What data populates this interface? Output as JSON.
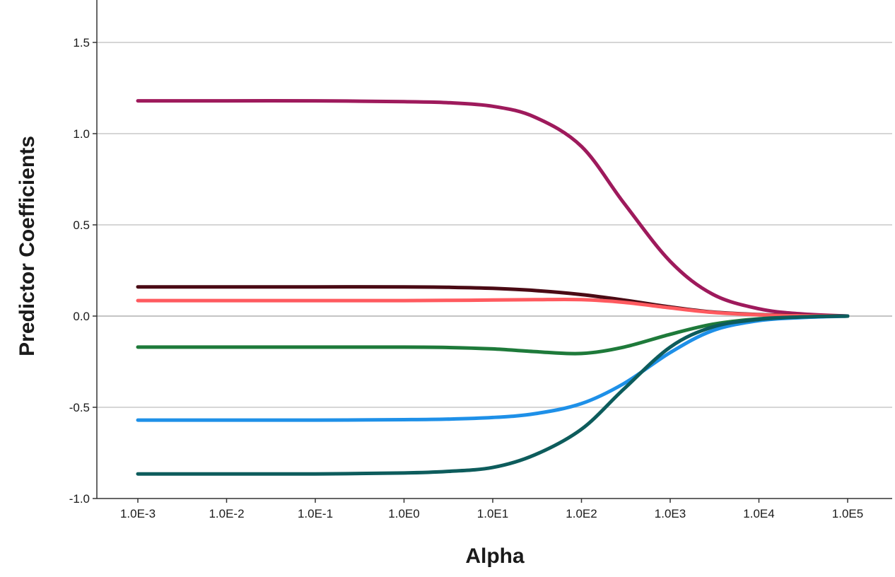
{
  "chart_data": {
    "type": "line",
    "title": "",
    "xlabel": "Alpha",
    "ylabel": "Predictor Coefficients",
    "x_scale": "log10",
    "x_ticks": [
      0.001,
      0.01,
      0.1,
      1,
      10,
      100,
      1000,
      10000,
      100000
    ],
    "x_tick_labels": [
      "1.0E-3",
      "1.0E-2",
      "1.0E-1",
      "1.0E0",
      "1.0E1",
      "1.0E2",
      "1.0E3",
      "1.0E4",
      "1.0E5"
    ],
    "y_ticks": [
      -1.0,
      -0.5,
      0.0,
      0.5,
      1.0,
      1.5
    ],
    "y_tick_labels": [
      "-1.0",
      "-0.5",
      "0.0",
      "0.5",
      "1.0",
      "1.5"
    ],
    "xlim": [
      0.001,
      100000
    ],
    "ylim": [
      -1.0,
      1.75
    ],
    "grid": "horizontal",
    "x": [
      0.001,
      0.01,
      0.1,
      1,
      3,
      10,
      30,
      100,
      300,
      1000,
      3000,
      10000,
      30000,
      100000
    ],
    "series": [
      {
        "color": "#9e1a5c",
        "values": [
          1.18,
          1.18,
          1.18,
          1.175,
          1.17,
          1.15,
          1.09,
          0.93,
          0.62,
          0.3,
          0.12,
          0.04,
          0.012,
          0.0
        ]
      },
      {
        "color": "#4a0a14",
        "values": [
          0.16,
          0.16,
          0.16,
          0.16,
          0.158,
          0.152,
          0.14,
          0.118,
          0.088,
          0.05,
          0.022,
          0.008,
          0.003,
          0.0
        ]
      },
      {
        "color": "#ff5a5f",
        "values": [
          0.085,
          0.085,
          0.085,
          0.085,
          0.086,
          0.088,
          0.09,
          0.09,
          0.075,
          0.045,
          0.02,
          0.007,
          0.002,
          0.0
        ]
      },
      {
        "color": "#1e7a3a",
        "values": [
          -0.17,
          -0.17,
          -0.17,
          -0.17,
          -0.172,
          -0.18,
          -0.195,
          -0.205,
          -0.17,
          -0.1,
          -0.045,
          -0.015,
          -0.005,
          0.0
        ]
      },
      {
        "color": "#1e90e8",
        "values": [
          -0.57,
          -0.57,
          -0.57,
          -0.568,
          -0.565,
          -0.556,
          -0.535,
          -0.48,
          -0.37,
          -0.2,
          -0.08,
          -0.025,
          -0.008,
          0.0
        ]
      },
      {
        "color": "#0d5c5c",
        "values": [
          -0.865,
          -0.865,
          -0.865,
          -0.86,
          -0.852,
          -0.83,
          -0.76,
          -0.62,
          -0.4,
          -0.17,
          -0.06,
          -0.018,
          -0.005,
          0.0
        ]
      }
    ]
  }
}
